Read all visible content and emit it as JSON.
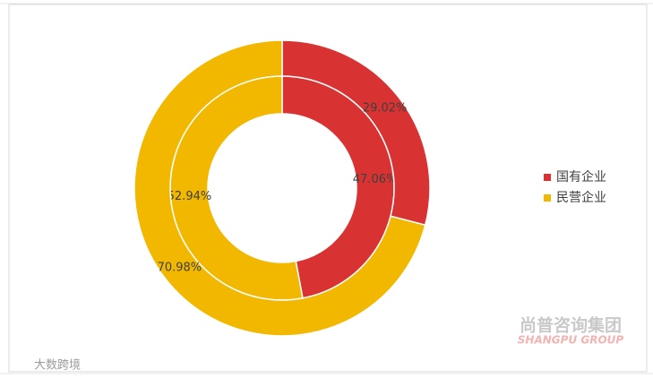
{
  "chart_data": {
    "type": "nested-donut",
    "categories": [
      "国有企业",
      "民营企业"
    ],
    "colors": [
      "#d83232",
      "#f2b800"
    ],
    "rings": [
      {
        "values": [
          47.06,
          52.94
        ],
        "value_labels": [
          "47.06%",
          "52.94%"
        ]
      },
      {
        "values": [
          29.02,
          70.98
        ],
        "value_labels": [
          "29.02%",
          "70.98%"
        ]
      }
    ],
    "legend": "right",
    "watermarks": [
      "尚普咨询集团",
      "SHANGPU GROUP",
      "大数跨境"
    ]
  }
}
